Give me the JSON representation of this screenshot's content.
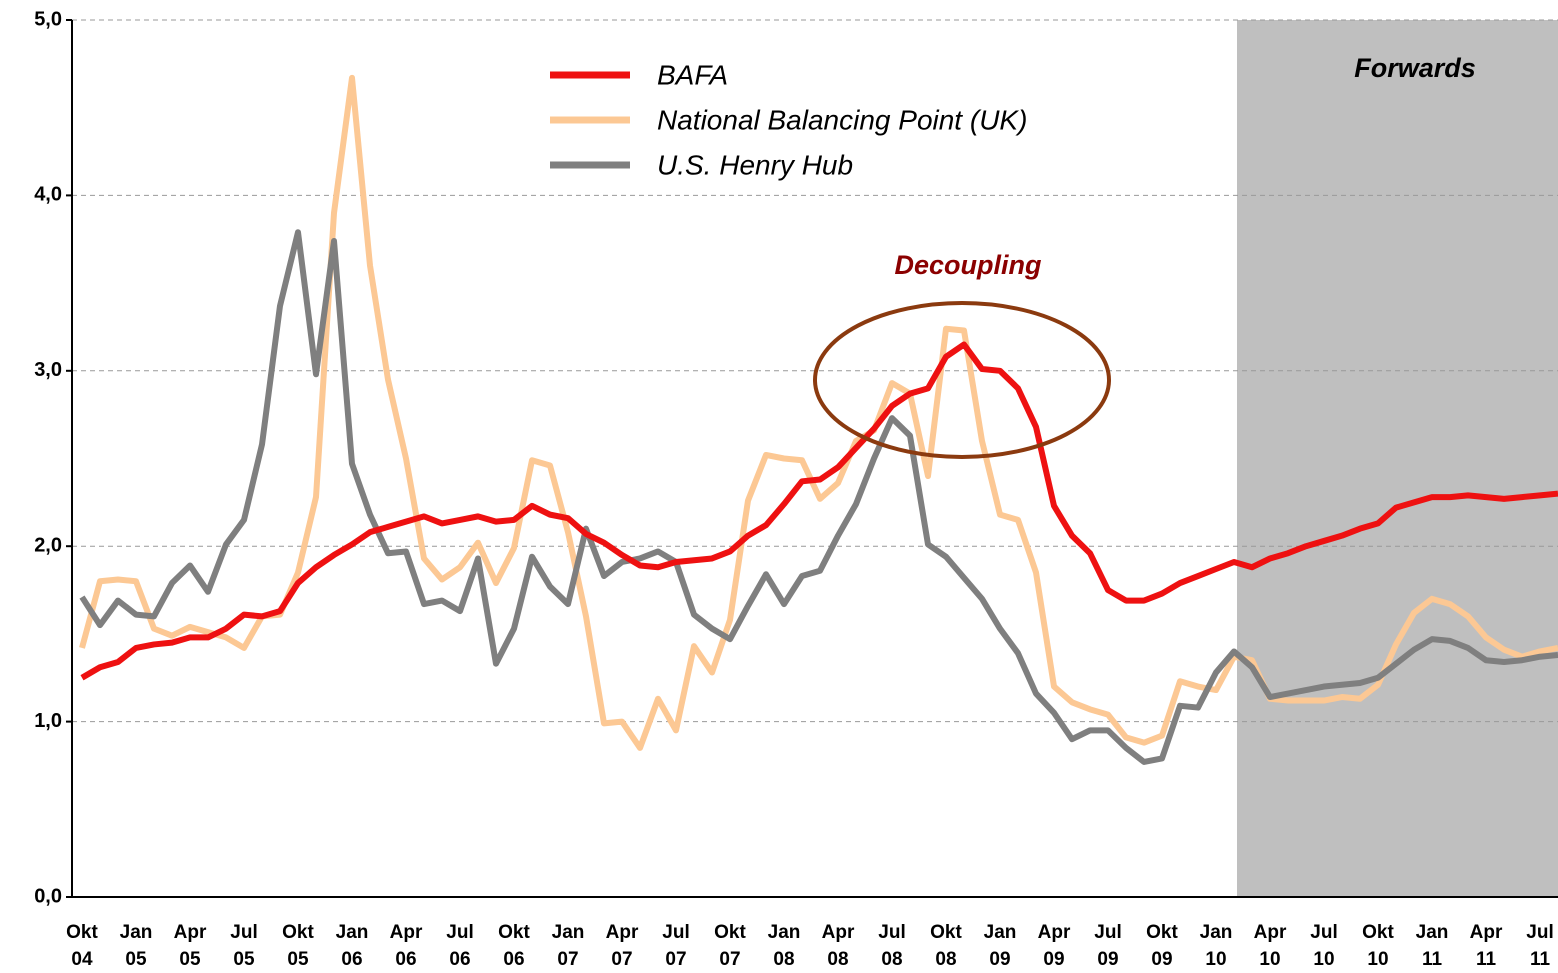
{
  "chart_data": {
    "type": "line",
    "legend": "top-center",
    "grid": true,
    "annotations": {
      "forwards": "Forwards",
      "decoupling": "Decoupling"
    },
    "categories": [
      "Okt 04",
      null,
      null,
      "Jan 05",
      null,
      null,
      "Apr 05",
      null,
      null,
      "Jul 05",
      null,
      null,
      "Okt 05",
      null,
      null,
      "Jan 06",
      null,
      null,
      "Apr 06",
      null,
      null,
      "Jul 06",
      null,
      null,
      "Okt 06",
      null,
      null,
      "Jan 07",
      null,
      null,
      "Apr 07",
      null,
      null,
      "Jul 07",
      null,
      null,
      "Okt 07",
      null,
      null,
      "Jan 08",
      null,
      null,
      "Apr 08",
      null,
      null,
      "Jul 08",
      null,
      null,
      "Okt 08",
      null,
      null,
      "Jan 09",
      null,
      null,
      "Apr 09",
      null,
      null,
      "Jul 09",
      null,
      null,
      "Okt 09",
      null,
      null,
      "Jan 10",
      null,
      null,
      "Apr 10",
      null,
      null,
      "Jul 10",
      null,
      null,
      "Okt 10",
      null,
      null,
      "Jan 11",
      null,
      null,
      "Apr 11",
      null,
      null,
      "Jul 11",
      null
    ],
    "ylim": [
      0,
      5
    ],
    "yticks": [
      {
        "value": 0,
        "label": "0,0"
      },
      {
        "value": 1,
        "label": "1,0"
      },
      {
        "value": 2,
        "label": "2,0"
      },
      {
        "value": 3,
        "label": "3,0"
      },
      {
        "value": 4,
        "label": "4,0"
      },
      {
        "value": 5,
        "label": "5,0"
      }
    ],
    "series": [
      {
        "name": "BAFA",
        "color": "#ee1111",
        "values": [
          1.25,
          1.31,
          1.34,
          1.42,
          1.44,
          1.45,
          1.48,
          1.48,
          1.53,
          1.61,
          1.6,
          1.63,
          1.79,
          1.88,
          1.95,
          2.01,
          2.08,
          2.11,
          2.14,
          2.17,
          2.13,
          2.15,
          2.17,
          2.14,
          2.15,
          2.23,
          2.18,
          2.16,
          2.07,
          2.02,
          1.95,
          1.89,
          1.88,
          1.91,
          1.92,
          1.93,
          1.97,
          2.06,
          2.12,
          2.24,
          2.37,
          2.38,
          2.45,
          2.56,
          2.67,
          2.8,
          2.87,
          2.9,
          3.08,
          3.15,
          3.01,
          3.0,
          2.9,
          2.68,
          2.23,
          2.06,
          1.96,
          1.75,
          1.69,
          1.69,
          1.73,
          1.79,
          1.83,
          1.87,
          1.91,
          1.88,
          1.93,
          1.96,
          2.0,
          2.03,
          2.06,
          2.1,
          2.13,
          2.22,
          2.25,
          2.28,
          2.28,
          2.29,
          2.28,
          2.27,
          2.28,
          2.29,
          2.3
        ]
      },
      {
        "name": "National Balancing Point (UK)",
        "color": "#fcc894",
        "values": [
          1.42,
          1.8,
          1.81,
          1.8,
          1.53,
          1.49,
          1.54,
          1.51,
          1.48,
          1.42,
          1.6,
          1.61,
          1.85,
          2.28,
          3.9,
          4.67,
          3.6,
          2.95,
          2.5,
          1.93,
          1.81,
          1.88,
          2.02,
          1.79,
          1.99,
          2.49,
          2.46,
          2.08,
          1.6,
          0.99,
          1.0,
          0.85,
          1.13,
          0.95,
          1.43,
          1.28,
          1.58,
          2.26,
          2.52,
          2.5,
          2.49,
          2.27,
          2.36,
          2.6,
          2.66,
          2.93,
          2.87,
          2.4,
          3.24,
          3.23,
          2.6,
          2.18,
          2.15,
          1.85,
          1.2,
          1.11,
          1.07,
          1.04,
          0.91,
          0.88,
          0.92,
          1.23,
          1.2,
          1.18,
          1.37,
          1.35,
          1.13,
          1.12,
          1.12,
          1.12,
          1.14,
          1.13,
          1.21,
          1.44,
          1.62,
          1.7,
          1.67,
          1.6,
          1.48,
          1.41,
          1.37,
          1.4,
          1.42
        ]
      },
      {
        "name": "U.S. Henry Hub",
        "color": "#7f7f7f",
        "values": [
          1.71,
          1.55,
          1.69,
          1.61,
          1.6,
          1.79,
          1.89,
          1.74,
          2.01,
          2.15,
          2.58,
          3.37,
          3.79,
          2.98,
          3.74,
          2.47,
          2.18,
          1.96,
          1.97,
          1.67,
          1.69,
          1.63,
          1.93,
          1.33,
          1.53,
          1.94,
          1.77,
          1.67,
          2.1,
          1.83,
          1.91,
          1.93,
          1.97,
          1.91,
          1.61,
          1.53,
          1.47,
          1.66,
          1.84,
          1.67,
          1.83,
          1.86,
          2.06,
          2.24,
          2.5,
          2.73,
          2.63,
          2.01,
          1.94,
          1.82,
          1.7,
          1.53,
          1.39,
          1.16,
          1.05,
          0.9,
          0.95,
          0.95,
          0.85,
          0.77,
          0.79,
          1.09,
          1.08,
          1.28,
          1.4,
          1.31,
          1.14,
          1.16,
          1.18,
          1.2,
          1.21,
          1.22,
          1.25,
          1.33,
          1.41,
          1.47,
          1.46,
          1.42,
          1.35,
          1.34,
          1.35,
          1.37,
          1.38
        ]
      }
    ]
  }
}
